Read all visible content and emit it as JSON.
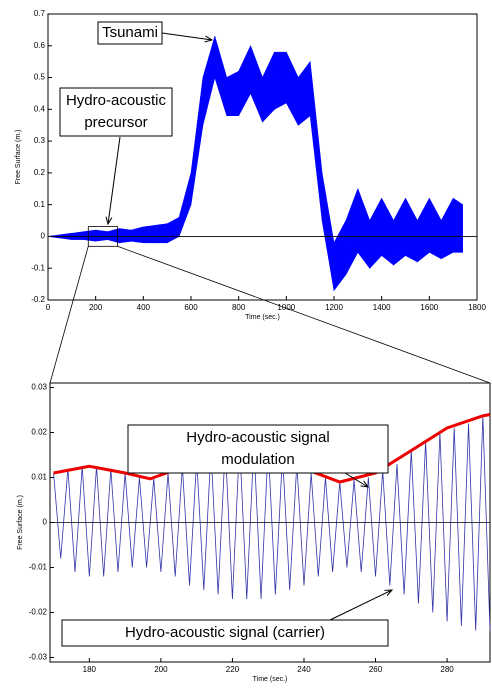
{
  "chart_data": [
    {
      "type": "band",
      "xlabel": "Time (sec.)",
      "ylabel": "Free Surface (m.)",
      "color": "#0000ff",
      "x": [
        0,
        50,
        100,
        150,
        200,
        250,
        300,
        350,
        400,
        450,
        500,
        550,
        600,
        650,
        700,
        750,
        800,
        850,
        900,
        950,
        1000,
        1050,
        1100,
        1150,
        1200,
        1250,
        1300,
        1350,
        1400,
        1450,
        1500,
        1550,
        1600,
        1650,
        1700,
        1740
      ],
      "upper": [
        0,
        0.005,
        0.01,
        0.015,
        0.02,
        0.015,
        0.025,
        0.02,
        0.03,
        0.035,
        0.04,
        0.06,
        0.2,
        0.5,
        0.63,
        0.5,
        0.52,
        0.6,
        0.5,
        0.58,
        0.58,
        0.5,
        0.55,
        0.2,
        -0.02,
        0.05,
        0.15,
        0.05,
        0.12,
        0.05,
        0.12,
        0.05,
        0.12,
        0.05,
        0.12,
        0.1
      ],
      "lower": [
        0,
        -0.005,
        -0.01,
        -0.01,
        -0.015,
        -0.01,
        -0.02,
        -0.015,
        -0.02,
        -0.02,
        -0.02,
        0,
        0.1,
        0.35,
        0.5,
        0.38,
        0.38,
        0.45,
        0.36,
        0.4,
        0.42,
        0.35,
        0.38,
        0.05,
        -0.17,
        -0.12,
        -0.05,
        -0.1,
        -0.06,
        -0.09,
        -0.06,
        -0.08,
        -0.05,
        -0.07,
        -0.05,
        -0.05
      ],
      "xlim": [
        0,
        1800
      ],
      "ylim": [
        -0.2,
        0.7
      ],
      "xticks": [
        0,
        200,
        400,
        600,
        800,
        1000,
        1200,
        1400,
        1600,
        1800
      ],
      "yticks": [
        -0.2,
        -0.1,
        0,
        0.1,
        0.2,
        0.3,
        0.4,
        0.5,
        0.6,
        0.7
      ],
      "annotations": [
        {
          "lines": [
            "Tsunami"
          ]
        },
        {
          "lines": [
            "Hydro-acoustic",
            "precursor"
          ]
        }
      ]
    },
    {
      "type": "line",
      "xlabel": "Time (sec.)",
      "ylabel": "Free Surface (m.)",
      "series": [
        {
          "color": "#3333aa",
          "x": [
            170,
            172,
            174,
            176,
            178,
            180,
            182,
            184,
            186,
            188,
            190,
            192,
            194,
            196,
            198,
            200,
            202,
            204,
            206,
            208,
            210,
            212,
            214,
            216,
            218,
            220,
            222,
            224,
            226,
            228,
            230,
            232,
            234,
            236,
            238,
            240,
            242,
            244,
            246,
            248,
            250,
            252,
            254,
            256,
            258,
            260,
            262,
            264,
            266,
            268,
            270,
            272,
            274,
            276,
            278,
            280,
            282,
            284,
            286,
            288,
            290,
            292
          ],
          "values": [
            0.011,
            -0.008,
            0.012,
            -0.011,
            0.0125,
            -0.012,
            0.0125,
            -0.012,
            0.012,
            -0.011,
            0.011,
            -0.01,
            0.01,
            -0.01,
            0.0098,
            -0.011,
            0.011,
            -0.012,
            0.0125,
            -0.014,
            0.014,
            -0.015,
            0.016,
            -0.016,
            0.017,
            -0.017,
            0.0178,
            -0.017,
            0.0175,
            -0.017,
            0.017,
            -0.016,
            0.015,
            -0.015,
            0.013,
            -0.014,
            0.011,
            -0.012,
            0.01,
            -0.011,
            0.009,
            -0.01,
            0.0095,
            -0.011,
            0.01,
            -0.012,
            0.0115,
            -0.014,
            0.013,
            -0.016,
            0.016,
            -0.018,
            0.018,
            -0.02,
            0.02,
            -0.022,
            0.021,
            -0.023,
            0.022,
            -0.024,
            0.0237,
            -0.024
          ]
        },
        {
          "color": "#ee0000",
          "x": [
            170,
            180,
            190,
            197,
            205,
            215,
            222,
            230,
            240,
            250,
            260,
            270,
            280,
            290,
            292
          ],
          "values": [
            0.011,
            0.0125,
            0.011,
            0.0097,
            0.012,
            0.016,
            0.0178,
            0.017,
            0.012,
            0.009,
            0.011,
            0.016,
            0.021,
            0.0237,
            0.024
          ]
        }
      ],
      "xlim": [
        169,
        292
      ],
      "ylim": [
        -0.031,
        0.031
      ],
      "xticks": [
        180,
        200,
        220,
        240,
        260,
        280
      ],
      "yticks": [
        -0.03,
        -0.02,
        -0.01,
        0,
        0.01,
        0.02,
        0.03
      ],
      "annotations": [
        {
          "lines": [
            "Hydro-acoustic signal",
            "modulation"
          ]
        },
        {
          "lines": [
            "Hydro-acoustic signal (carrier)"
          ]
        }
      ]
    }
  ]
}
